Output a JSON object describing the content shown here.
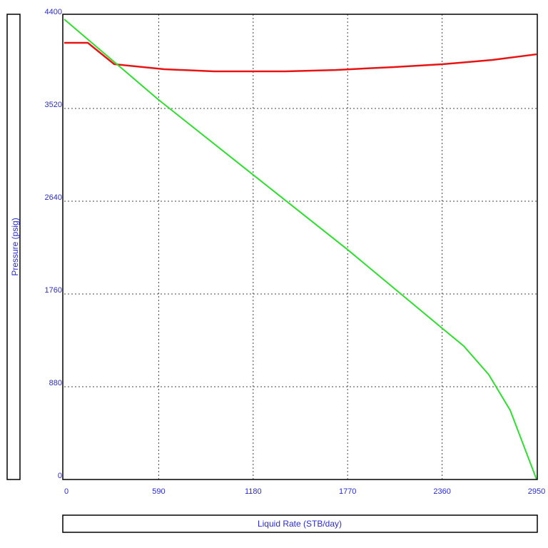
{
  "chart_data": {
    "type": "line",
    "xlabel": "Liquid Rate (STB/day)",
    "ylabel": "Pressure (psig)",
    "xlim": [
      0,
      2950
    ],
    "xticks": [
      0,
      590,
      1180,
      1770,
      2360,
      2950
    ],
    "ylim": [
      0,
      4400
    ],
    "yticks": [
      0,
      880,
      1760,
      2640,
      3520,
      4400
    ],
    "grid": true,
    "series": [
      {
        "color": "#e81414",
        "x": [
          0,
          147,
          312,
          624,
          936,
          1381,
          1693,
          2050,
          2362,
          2674,
          2950
        ],
        "values": [
          4143,
          4143,
          3940,
          3892,
          3872,
          3872,
          3885,
          3912,
          3940,
          3980,
          4034
        ]
      },
      {
        "color": "#2ee02e",
        "x": [
          0,
          590,
          1180,
          1770,
          2360,
          2495,
          2651,
          2785,
          2950
        ],
        "values": [
          4366,
          3601,
          2890,
          2180,
          1435,
          1266,
          995,
          657,
          0
        ]
      }
    ]
  }
}
